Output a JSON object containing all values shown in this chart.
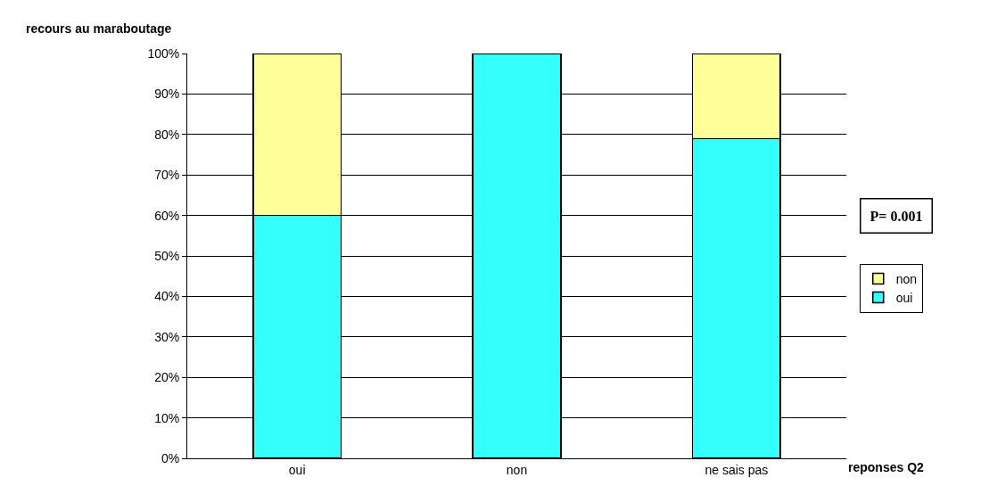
{
  "chart_data": {
    "type": "bar",
    "stacked": true,
    "categories": [
      "oui",
      "non",
      "ne sais pas"
    ],
    "series": [
      {
        "name": "oui",
        "color": "#33ffff",
        "values": [
          60,
          100,
          79
        ]
      },
      {
        "name": "non",
        "color": "#ffff99",
        "values": [
          40,
          null,
          21
        ]
      }
    ],
    "ylim": [
      0,
      100
    ],
    "yticks": [
      {
        "value": 0,
        "label": "0%"
      },
      {
        "value": 10,
        "label": "10%"
      },
      {
        "value": 20,
        "label": "20%"
      },
      {
        "value": 30,
        "label": "30%"
      },
      {
        "value": 40,
        "label": "40%"
      },
      {
        "value": 50,
        "label": "50%"
      },
      {
        "value": 60,
        "label": "60%"
      },
      {
        "value": 70,
        "label": "70%"
      },
      {
        "value": 80,
        "label": "80%"
      },
      {
        "value": 90,
        "label": "90%"
      },
      {
        "value": 100,
        "label": "100%"
      }
    ],
    "ylabel": "recours au maraboutage",
    "xlabel": "reponses Q2",
    "annotations": [
      "P= 0.001"
    ],
    "grid": "y",
    "legend": "right"
  }
}
